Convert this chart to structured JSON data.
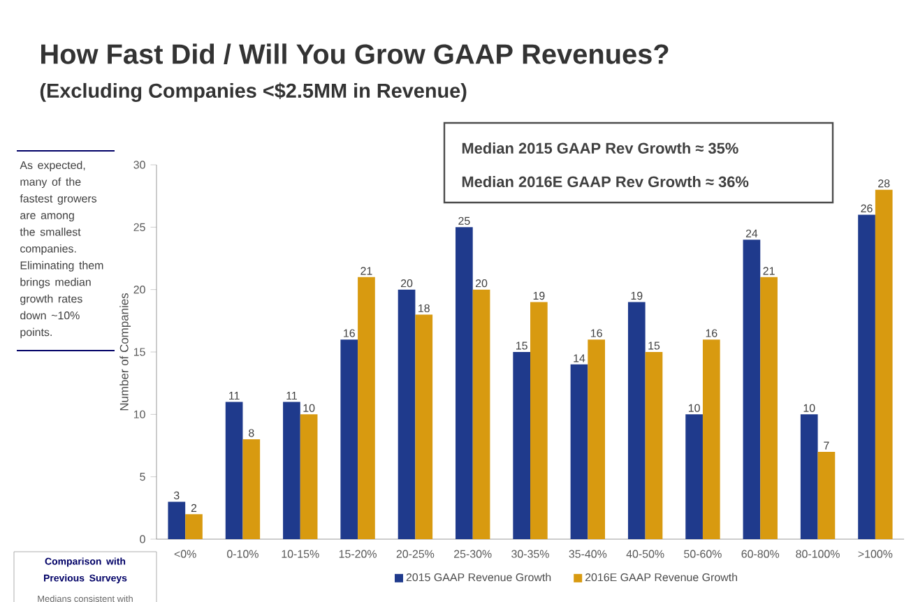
{
  "chart_data": {
    "type": "bar",
    "title": "How Fast Did / Will You Grow GAAP Revenues?",
    "subtitle": "(Excluding Companies <$2.5MM in Revenue)",
    "ylabel": "Number of Companies",
    "categories": [
      "<0%",
      "0-10%",
      "10-15%",
      "15-20%",
      "20-25%",
      "25-30%",
      "30-35%",
      "35-40%",
      "40-50%",
      "50-60%",
      "60-80%",
      "80-100%",
      ">100%"
    ],
    "series": [
      {
        "name": "2015 GAAP Revenue Growth",
        "color": "#1f3a8c",
        "values": [
          3,
          11,
          11,
          16,
          20,
          25,
          15,
          14,
          19,
          10,
          24,
          10,
          26
        ]
      },
      {
        "name": "2016E GAAP Revenue Growth",
        "color": "#d89a10",
        "values": [
          2,
          8,
          10,
          21,
          18,
          20,
          19,
          16,
          15,
          16,
          21,
          7,
          28
        ]
      }
    ],
    "ylim": [
      0,
      30
    ],
    "yticks": [
      0,
      5,
      10,
      15,
      20,
      25,
      30
    ],
    "data_labels": true,
    "legend": "bottom",
    "annotations": [
      "As expected, many of the fastest growers are among the smallest companies. Eliminating them brings median growth rates down ~10% points.",
      "Median 2015 GAAP Rev Growth ≈ 35%",
      "Median 2016E GAAP Rev Growth ≈ 36%",
      "Comparison with Previous Surveys",
      "Medians consistent with"
    ]
  }
}
